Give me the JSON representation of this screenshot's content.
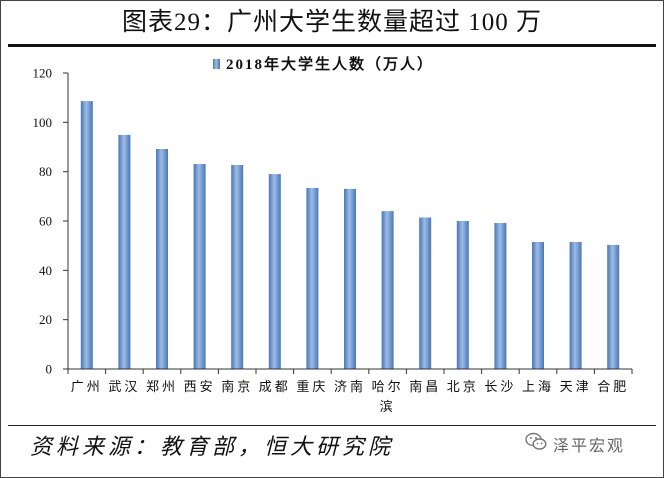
{
  "chart_data": {
    "type": "bar",
    "title": "图表29：广州大学生数量超过 100 万",
    "xlabel": "",
    "ylabel": "",
    "categories": [
      "广州",
      "武汉",
      "郑州",
      "西安",
      "南京",
      "成都",
      "重庆",
      "济南",
      "哈尔滨",
      "南昌",
      "北京",
      "长沙",
      "上海",
      "天津",
      "合肥"
    ],
    "series": [
      {
        "name": "2018年大学生人数（万人）",
        "color": "#4a76b5",
        "values": [
          108.6,
          94.9,
          89.2,
          83.1,
          82.7,
          79.0,
          73.4,
          73.0,
          64.0,
          61.4,
          60.0,
          59.2,
          51.5,
          51.5,
          50.3
        ]
      }
    ],
    "ylim": [
      0,
      120
    ],
    "yticks": [
      0,
      20,
      40,
      60,
      80,
      100,
      120
    ],
    "grid": false,
    "legend": "top-center"
  },
  "footer": {
    "source": "资料来源：教育部，恒大研究院",
    "watermark": "泽平宏观",
    "watermark_icon": "wechat-icon",
    "watermark_color": "#666666"
  }
}
